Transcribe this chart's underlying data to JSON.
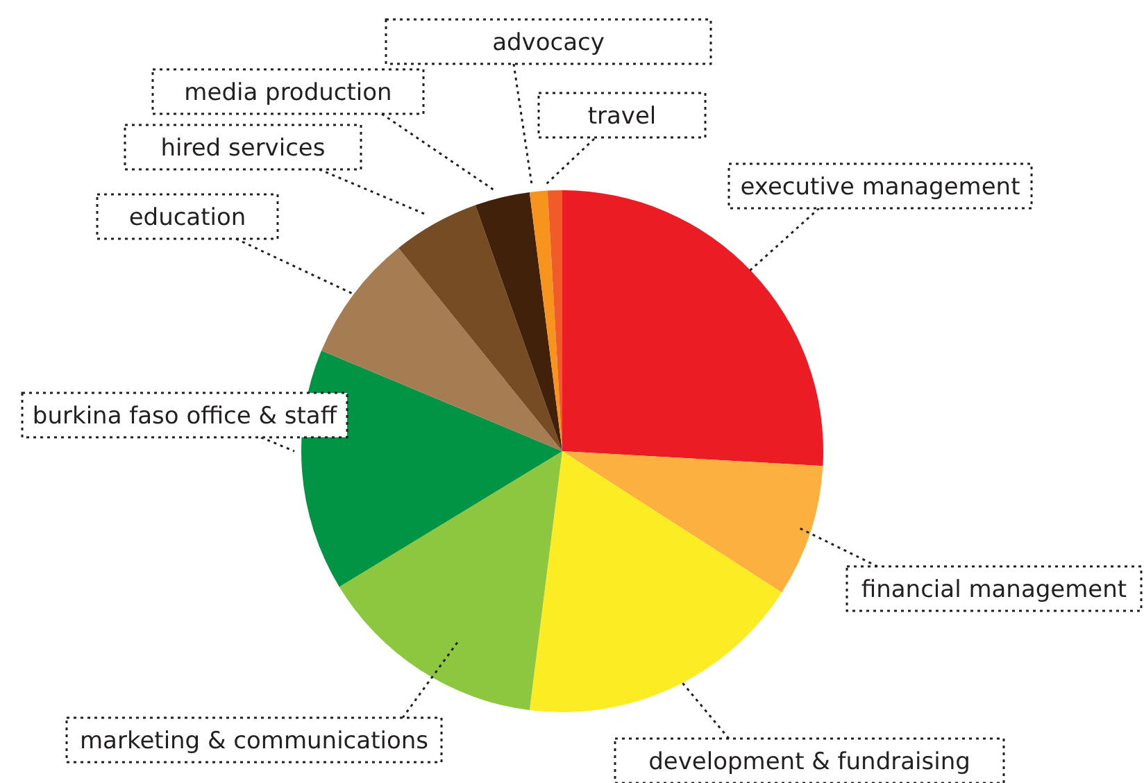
{
  "chart_data": {
    "type": "pie",
    "categories": [
      "executive management",
      "financial management",
      "development & fundraising",
      "marketing & communications",
      "burkina faso office & staff",
      "education",
      "hired services",
      "media production",
      "advocacy",
      "travel"
    ],
    "values": [
      25.9,
      8.2,
      17.9,
      14.3,
      15,
      7.9,
      5.4,
      3.4,
      1.1,
      0.9
    ],
    "colors": [
      "#ec1c24",
      "#fbb040",
      "#fbec24",
      "#8dc63f",
      "#009444",
      "#a67c52",
      "#754c24",
      "#42210b",
      "#f7941d",
      "#f15a29"
    ]
  }
}
